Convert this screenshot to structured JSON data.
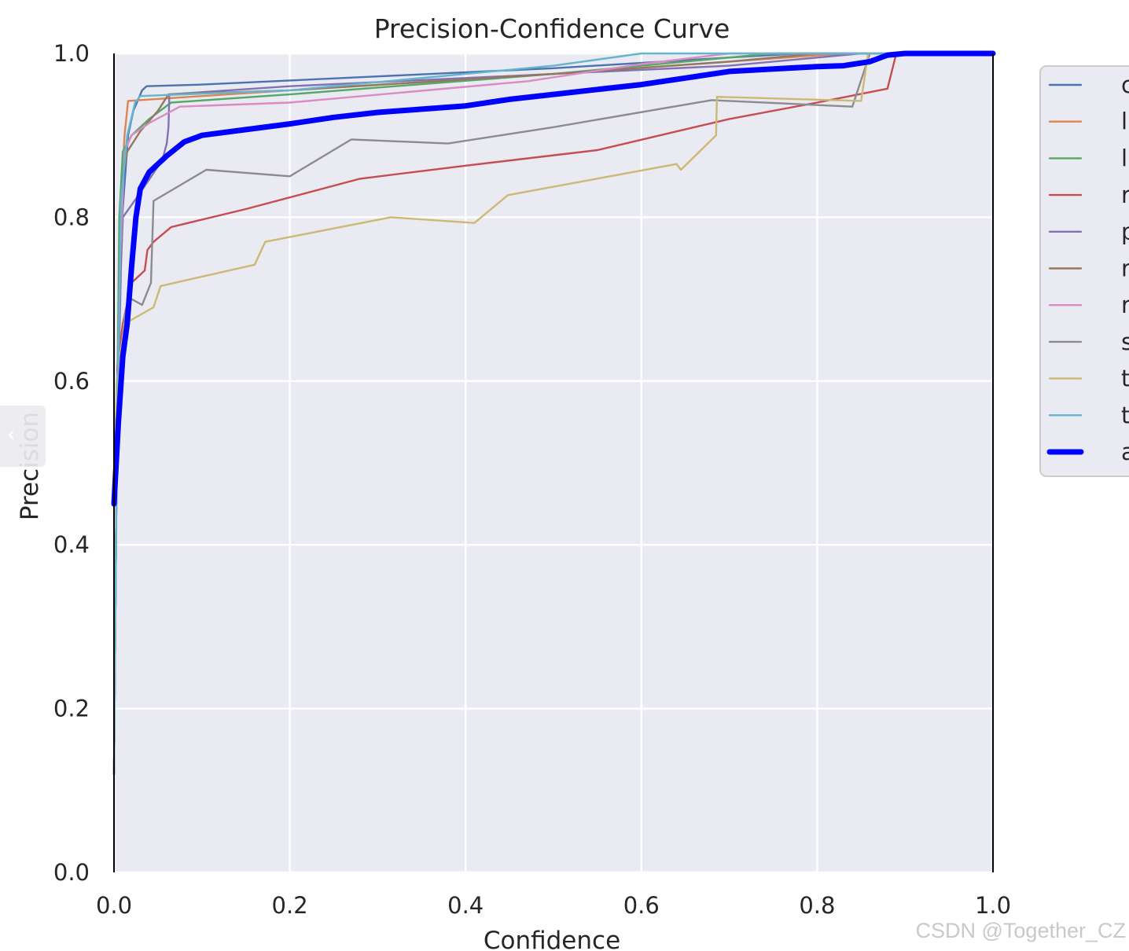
{
  "chart_data": {
    "type": "line",
    "title": "Precision-Confidence Curve",
    "xlabel": "Confidence",
    "ylabel": "Precision",
    "xlim": [
      0.0,
      1.0
    ],
    "ylim": [
      0.0,
      1.0
    ],
    "xticks": [
      "0.0",
      "0.2",
      "0.4",
      "0.6",
      "0.8",
      "1.0"
    ],
    "yticks": [
      "0.0",
      "0.2",
      "0.4",
      "0.6",
      "0.8",
      "1.0"
    ],
    "grid": true,
    "legend_position": "outside-right (clipped)",
    "series": [
      {
        "name": "c",
        "color": "#4c72b0",
        "points": [
          [
            0.0,
            0.12
          ],
          [
            0.003,
            0.5
          ],
          [
            0.008,
            0.78
          ],
          [
            0.016,
            0.9
          ],
          [
            0.022,
            0.93
          ],
          [
            0.032,
            0.955
          ],
          [
            0.037,
            0.96
          ],
          [
            0.1,
            0.962
          ],
          [
            0.3,
            0.972
          ],
          [
            0.5,
            0.982
          ],
          [
            0.7,
            0.995
          ],
          [
            0.78,
            1.0
          ],
          [
            1.0,
            1.0
          ]
        ]
      },
      {
        "name": "l",
        "color": "#dd8452",
        "points": [
          [
            0.0,
            0.12
          ],
          [
            0.003,
            0.5
          ],
          [
            0.007,
            0.8
          ],
          [
            0.012,
            0.9
          ],
          [
            0.016,
            0.942
          ],
          [
            0.2,
            0.955
          ],
          [
            0.5,
            0.975
          ],
          [
            0.7,
            0.99
          ],
          [
            0.83,
            1.0
          ],
          [
            1.0,
            1.0
          ]
        ]
      },
      {
        "name": "l",
        "color": "#55a868",
        "points": [
          [
            0.0,
            0.12
          ],
          [
            0.003,
            0.5
          ],
          [
            0.006,
            0.8
          ],
          [
            0.01,
            0.88
          ],
          [
            0.02,
            0.9
          ],
          [
            0.04,
            0.92
          ],
          [
            0.065,
            0.94
          ],
          [
            0.2,
            0.95
          ],
          [
            0.5,
            0.975
          ],
          [
            0.7,
            0.995
          ],
          [
            0.75,
            1.0
          ],
          [
            1.0,
            1.0
          ]
        ]
      },
      {
        "name": "r",
        "color": "#c44e52",
        "points": [
          [
            0.0,
            0.45
          ],
          [
            0.004,
            0.62
          ],
          [
            0.01,
            0.67
          ],
          [
            0.02,
            0.72
          ],
          [
            0.035,
            0.735
          ],
          [
            0.038,
            0.76
          ],
          [
            0.045,
            0.77
          ],
          [
            0.065,
            0.788
          ],
          [
            0.15,
            0.81
          ],
          [
            0.28,
            0.847
          ],
          [
            0.4,
            0.863
          ],
          [
            0.55,
            0.882
          ],
          [
            0.7,
            0.92
          ],
          [
            0.8,
            0.94
          ],
          [
            0.88,
            0.957
          ],
          [
            0.89,
            1.0
          ],
          [
            1.0,
            1.0
          ]
        ]
      },
      {
        "name": "p",
        "color": "#8172b3",
        "points": [
          [
            0.0,
            0.12
          ],
          [
            0.003,
            0.5
          ],
          [
            0.008,
            0.74
          ],
          [
            0.01,
            0.8
          ],
          [
            0.03,
            0.83
          ],
          [
            0.055,
            0.87
          ],
          [
            0.06,
            0.89
          ],
          [
            0.062,
            0.91
          ],
          [
            0.063,
            0.95
          ],
          [
            0.2,
            0.96
          ],
          [
            0.5,
            0.975
          ],
          [
            0.7,
            0.985
          ],
          [
            0.85,
            1.0
          ],
          [
            1.0,
            1.0
          ]
        ]
      },
      {
        "name": "r",
        "color": "#937860",
        "points": [
          [
            0.0,
            0.12
          ],
          [
            0.003,
            0.5
          ],
          [
            0.006,
            0.72
          ],
          [
            0.01,
            0.85
          ],
          [
            0.015,
            0.88
          ],
          [
            0.03,
            0.905
          ],
          [
            0.05,
            0.93
          ],
          [
            0.062,
            0.95
          ],
          [
            0.2,
            0.955
          ],
          [
            0.5,
            0.975
          ],
          [
            0.7,
            0.99
          ],
          [
            0.8,
            1.0
          ],
          [
            1.0,
            1.0
          ]
        ]
      },
      {
        "name": "r",
        "color": "#da8bc3",
        "points": [
          [
            0.0,
            0.12
          ],
          [
            0.003,
            0.5
          ],
          [
            0.007,
            0.75
          ],
          [
            0.012,
            0.88
          ],
          [
            0.02,
            0.9
          ],
          [
            0.04,
            0.915
          ],
          [
            0.075,
            0.935
          ],
          [
            0.2,
            0.94
          ],
          [
            0.47,
            0.966
          ],
          [
            0.6,
            0.987
          ],
          [
            0.7,
            1.0
          ],
          [
            1.0,
            1.0
          ]
        ]
      },
      {
        "name": "s",
        "color": "#8c8c8c",
        "points": [
          [
            0.0,
            0.12
          ],
          [
            0.003,
            0.5
          ],
          [
            0.012,
            0.68
          ],
          [
            0.02,
            0.7
          ],
          [
            0.032,
            0.693
          ],
          [
            0.042,
            0.72
          ],
          [
            0.045,
            0.82
          ],
          [
            0.105,
            0.858
          ],
          [
            0.2,
            0.85
          ],
          [
            0.27,
            0.895
          ],
          [
            0.38,
            0.89
          ],
          [
            0.5,
            0.91
          ],
          [
            0.68,
            0.943
          ],
          [
            0.84,
            0.935
          ],
          [
            0.86,
            1.0
          ],
          [
            1.0,
            1.0
          ]
        ]
      },
      {
        "name": "t",
        "color": "#ccb974",
        "points": [
          [
            0.0,
            0.45
          ],
          [
            0.003,
            0.6
          ],
          [
            0.012,
            0.67
          ],
          [
            0.045,
            0.69
          ],
          [
            0.053,
            0.716
          ],
          [
            0.16,
            0.742
          ],
          [
            0.172,
            0.77
          ],
          [
            0.315,
            0.8
          ],
          [
            0.41,
            0.793
          ],
          [
            0.448,
            0.827
          ],
          [
            0.64,
            0.865
          ],
          [
            0.645,
            0.858
          ],
          [
            0.685,
            0.9
          ],
          [
            0.686,
            0.947
          ],
          [
            0.85,
            0.942
          ],
          [
            0.858,
            1.0
          ],
          [
            1.0,
            1.0
          ]
        ]
      },
      {
        "name": "t",
        "color": "#64b5cd",
        "points": [
          [
            0.0,
            0.12
          ],
          [
            0.003,
            0.5
          ],
          [
            0.008,
            0.82
          ],
          [
            0.015,
            0.9
          ],
          [
            0.024,
            0.94
          ],
          [
            0.03,
            0.948
          ],
          [
            0.2,
            0.955
          ],
          [
            0.5,
            0.985
          ],
          [
            0.6,
            1.0
          ],
          [
            1.0,
            1.0
          ]
        ]
      },
      {
        "name": "a",
        "color": "#0000ff",
        "bold": true,
        "points": [
          [
            0.0,
            0.45
          ],
          [
            0.005,
            0.55
          ],
          [
            0.01,
            0.63
          ],
          [
            0.015,
            0.67
          ],
          [
            0.02,
            0.74
          ],
          [
            0.025,
            0.8
          ],
          [
            0.03,
            0.835
          ],
          [
            0.04,
            0.855
          ],
          [
            0.06,
            0.875
          ],
          [
            0.08,
            0.892
          ],
          [
            0.1,
            0.9
          ],
          [
            0.15,
            0.907
          ],
          [
            0.2,
            0.914
          ],
          [
            0.25,
            0.922
          ],
          [
            0.3,
            0.928
          ],
          [
            0.35,
            0.932
          ],
          [
            0.4,
            0.936
          ],
          [
            0.45,
            0.944
          ],
          [
            0.5,
            0.95
          ],
          [
            0.55,
            0.956
          ],
          [
            0.6,
            0.962
          ],
          [
            0.65,
            0.97
          ],
          [
            0.7,
            0.978
          ],
          [
            0.75,
            0.981
          ],
          [
            0.8,
            0.984
          ],
          [
            0.83,
            0.985
          ],
          [
            0.86,
            0.99
          ],
          [
            0.88,
            0.998
          ],
          [
            0.9,
            1.0
          ],
          [
            1.0,
            1.0
          ]
        ]
      }
    ]
  },
  "watermark": "CSDN @Together_CZ"
}
